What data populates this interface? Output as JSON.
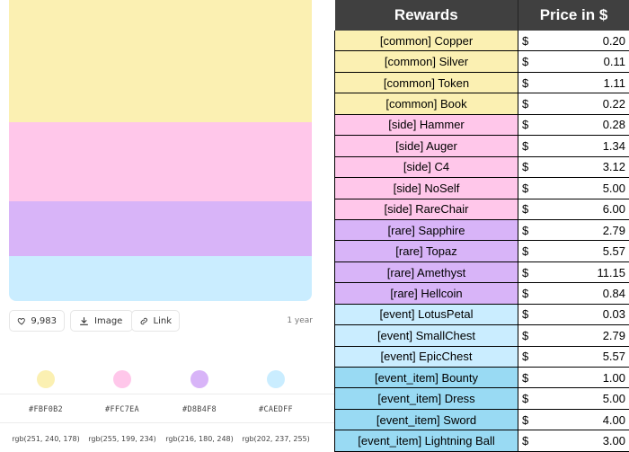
{
  "palette": {
    "colors": [
      {
        "hex": "#FBF0B2",
        "rgb": "rgb(251, 240, 178)"
      },
      {
        "hex": "#FFC7EA",
        "rgb": "rgb(255, 199, 234)"
      },
      {
        "hex": "#D8B4F8",
        "rgb": "rgb(216, 180, 248)"
      },
      {
        "hex": "#CAEDFF",
        "rgb": "rgb(202, 237, 255)"
      }
    ],
    "likes": "9,983",
    "image_label": "Image",
    "link_label": "Link",
    "age": "1 year",
    "icons": [
      "heart-icon",
      "download-icon",
      "link-icon"
    ]
  },
  "table": {
    "header_rewards": "Rewards",
    "header_price": "Price in $",
    "currency": "$",
    "rows": [
      {
        "name": "[common] Copper",
        "price": "0.20",
        "color": "#FBF0B2"
      },
      {
        "name": "[common] Silver",
        "price": "0.11",
        "color": "#FBF0B2"
      },
      {
        "name": "[common] Token",
        "price": "1.11",
        "color": "#FBF0B2"
      },
      {
        "name": "[common] Book",
        "price": "0.22",
        "color": "#FBF0B2"
      },
      {
        "name": "[side] Hammer",
        "price": "0.28",
        "color": "#FFC7EA"
      },
      {
        "name": "[side] Auger",
        "price": "1.34",
        "color": "#FFC7EA"
      },
      {
        "name": "[side] C4",
        "price": "3.12",
        "color": "#FFC7EA"
      },
      {
        "name": "[side] NoSelf",
        "price": "5.00",
        "color": "#FFC7EA"
      },
      {
        "name": "[side] RareChair",
        "price": "6.00",
        "color": "#FFC7EA"
      },
      {
        "name": "[rare] Sapphire",
        "price": "2.79",
        "color": "#D8B4F8"
      },
      {
        "name": "[rare] Topaz",
        "price": "5.57",
        "color": "#D8B4F8"
      },
      {
        "name": "[rare] Amethyst",
        "price": "11.15",
        "color": "#D8B4F8"
      },
      {
        "name": "[rare] Hellcoin",
        "price": "0.84",
        "color": "#D8B4F8"
      },
      {
        "name": "[event] LotusPetal",
        "price": "0.03",
        "color": "#CAEDFF"
      },
      {
        "name": "[event] SmallChest",
        "price": "2.79",
        "color": "#CAEDFF"
      },
      {
        "name": "[event] EpicChest",
        "price": "5.57",
        "color": "#CAEDFF"
      },
      {
        "name": "[event_item] Bounty",
        "price": "1.00",
        "color": "#99DAF3"
      },
      {
        "name": "[event_item] Dress",
        "price": "5.00",
        "color": "#99DAF3"
      },
      {
        "name": "[event_item] Sword",
        "price": "4.00",
        "color": "#99DAF3"
      },
      {
        "name": "[event_item] Lightning Ball",
        "price": "3.00",
        "color": "#99DAF3"
      }
    ]
  }
}
